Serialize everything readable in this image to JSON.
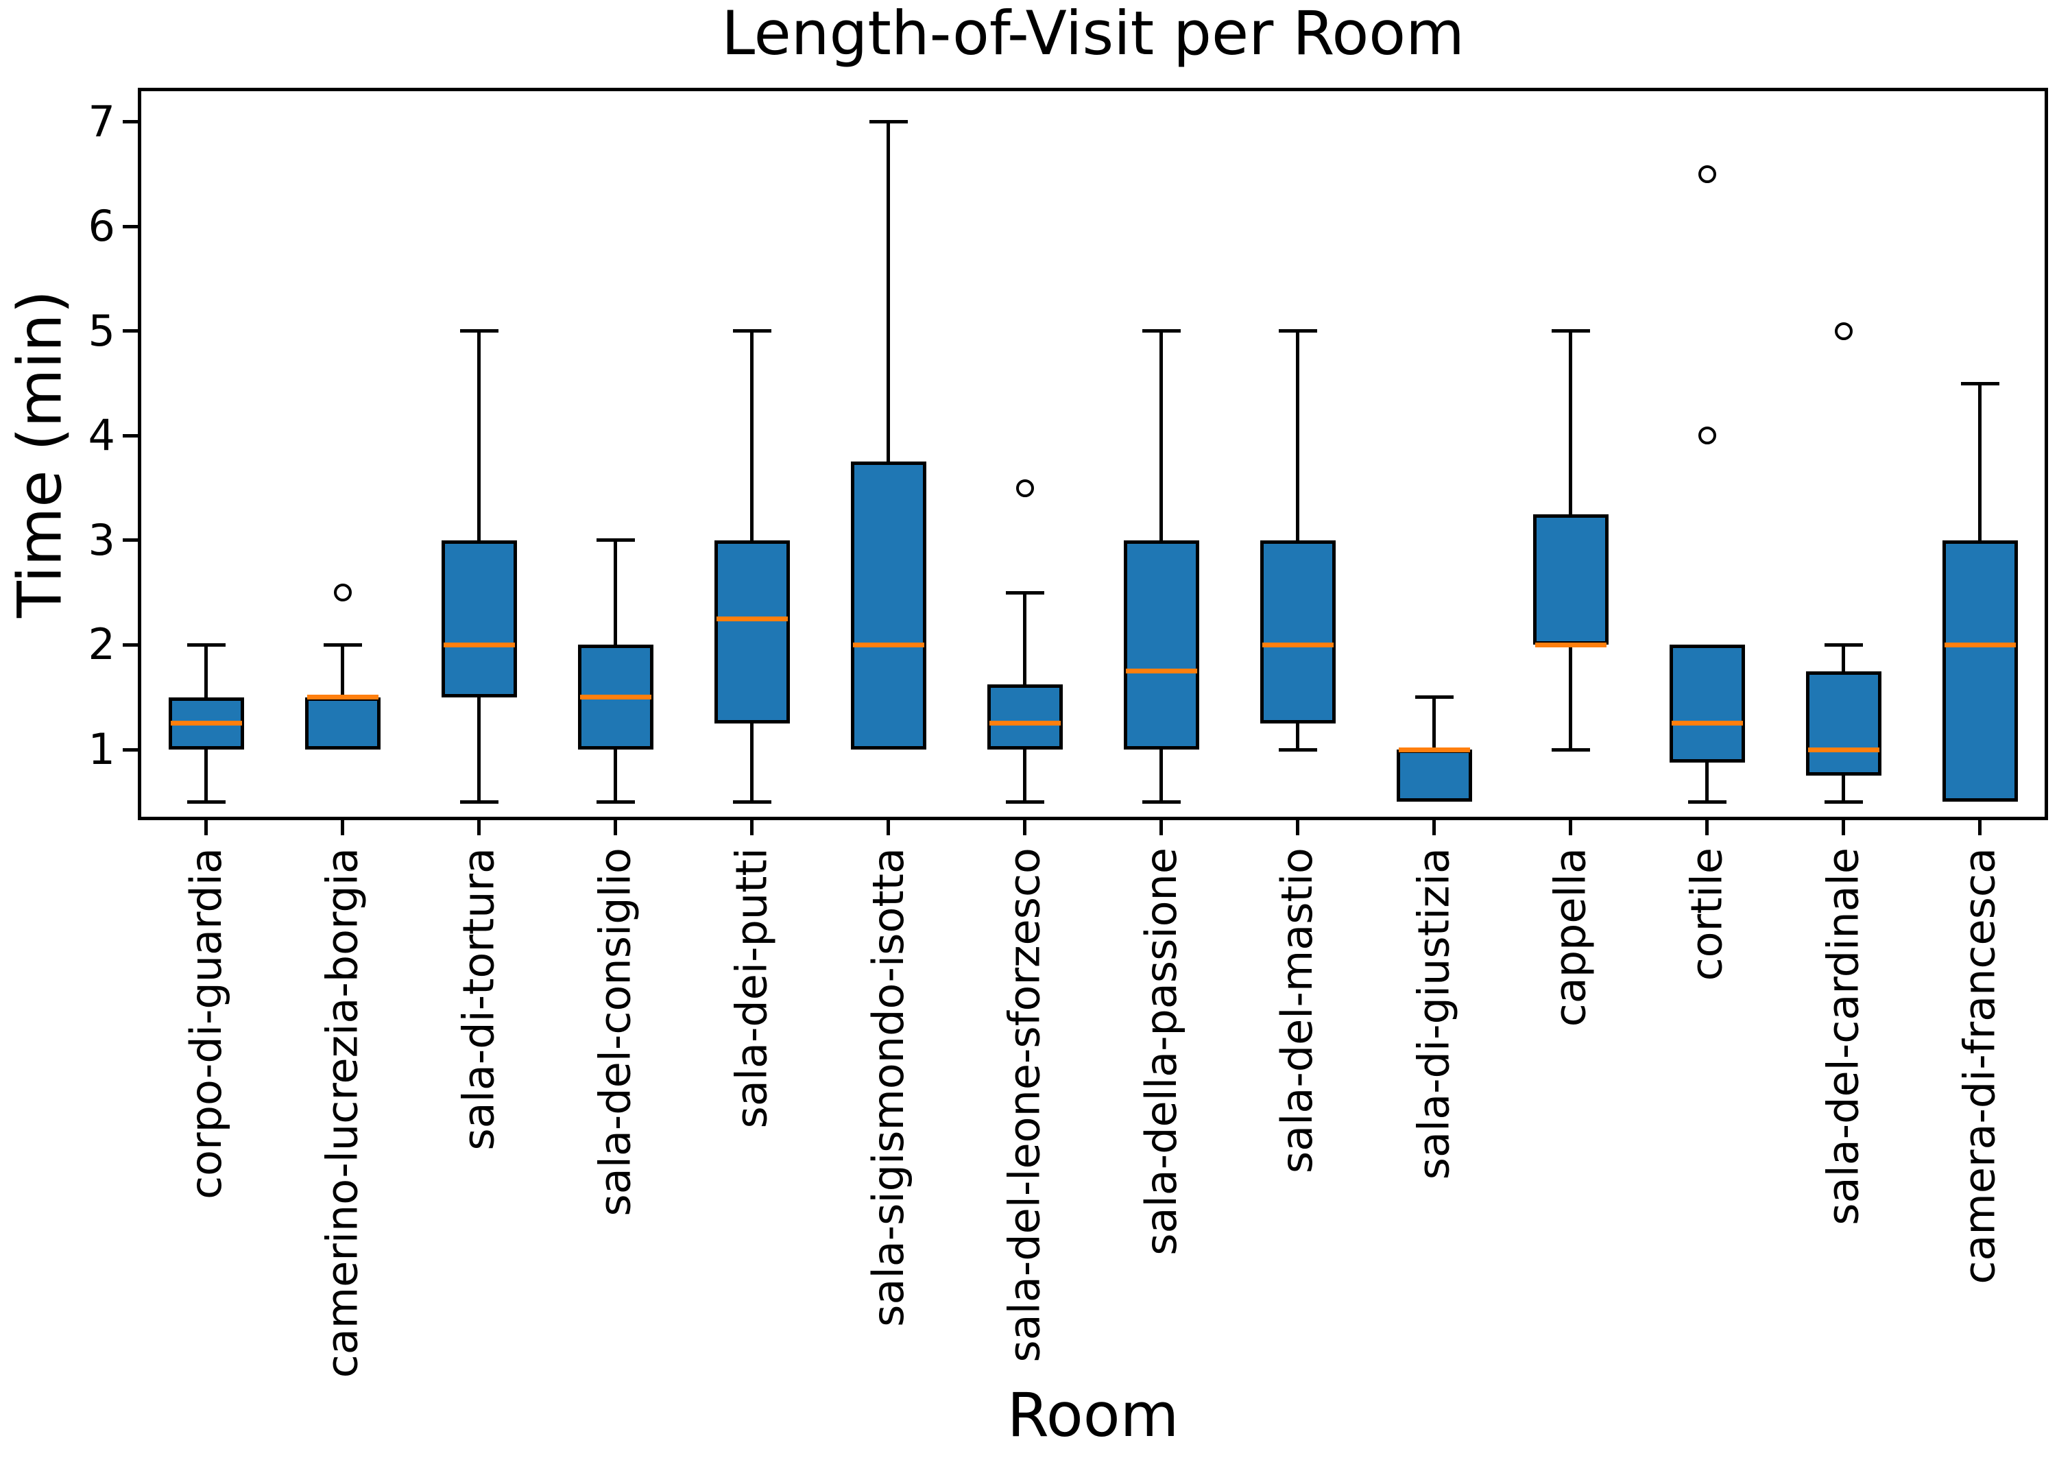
{
  "title": "Length-of-Visit per Room",
  "chart_data": {
    "type": "boxplot",
    "title": "Length-of-Visit per Room",
    "xlabel": "Room",
    "ylabel": "Time (min)",
    "ylim": [
      0.325,
      7.325
    ],
    "yticks": [
      1,
      2,
      3,
      4,
      5,
      6,
      7
    ],
    "grid": false,
    "legend": null,
    "colors": {
      "box_fill": "#1f77b4",
      "median": "#ff7f0e",
      "line": "#000000",
      "background": "#ffffff"
    },
    "categories": [
      "corpo-di-guardia",
      "camerino-lucrezia-borgia",
      "sala-di-tortura",
      "sala-del-consiglio",
      "sala-dei-putti",
      "sala-sigismondo-isotta",
      "sala-del-leone-sforzesco",
      "sala-della-passione",
      "sala-del-mastio",
      "sala-di-giustizia",
      "cappella",
      "cortile",
      "sala-del-cardinale",
      "camera-di-francesca"
    ],
    "series": [
      {
        "name": "corpo-di-guardia",
        "whislo": 0.5,
        "q1": 1.0,
        "med": 1.25,
        "q3": 1.5,
        "whishi": 2.0,
        "fliers": []
      },
      {
        "name": "camerino-lucrezia-borgia",
        "whislo": 1.0,
        "q1": 1.0,
        "med": 1.5,
        "q3": 1.5,
        "whishi": 2.0,
        "fliers": [
          2.5
        ]
      },
      {
        "name": "sala-di-tortura",
        "whislo": 0.5,
        "q1": 1.5,
        "med": 2.0,
        "q3": 3.0,
        "whishi": 5.0,
        "fliers": []
      },
      {
        "name": "sala-del-consiglio",
        "whislo": 0.5,
        "q1": 1.0,
        "med": 1.5,
        "q3": 2.0,
        "whishi": 3.0,
        "fliers": []
      },
      {
        "name": "sala-dei-putti",
        "whislo": 0.5,
        "q1": 1.25,
        "med": 2.25,
        "q3": 3.0,
        "whishi": 5.0,
        "fliers": []
      },
      {
        "name": "sala-sigismondo-isotta",
        "whislo": 1.0,
        "q1": 1.0,
        "med": 2.0,
        "q3": 3.75,
        "whishi": 7.0,
        "fliers": []
      },
      {
        "name": "sala-del-leone-sforzesco",
        "whislo": 0.5,
        "q1": 1.0,
        "med": 1.25,
        "q3": 1.625,
        "whishi": 2.5,
        "fliers": [
          3.5
        ]
      },
      {
        "name": "sala-della-passione",
        "whislo": 0.5,
        "q1": 1.0,
        "med": 1.75,
        "q3": 3.0,
        "whishi": 5.0,
        "fliers": []
      },
      {
        "name": "sala-del-mastio",
        "whislo": 1.0,
        "q1": 1.25,
        "med": 2.0,
        "q3": 3.0,
        "whishi": 5.0,
        "fliers": []
      },
      {
        "name": "sala-di-giustizia",
        "whislo": 0.5,
        "q1": 0.5,
        "med": 1.0,
        "q3": 1.0,
        "whishi": 1.5,
        "fliers": []
      },
      {
        "name": "cappella",
        "whislo": 1.0,
        "q1": 2.0,
        "med": 2.0,
        "q3": 3.25,
        "whishi": 5.0,
        "fliers": []
      },
      {
        "name": "cortile",
        "whislo": 0.5,
        "q1": 0.875,
        "med": 1.25,
        "q3": 2.0,
        "whishi": 2.0,
        "fliers": [
          4.0,
          6.5
        ]
      },
      {
        "name": "sala-del-cardinale",
        "whislo": 0.5,
        "q1": 0.75,
        "med": 1.0,
        "q3": 1.75,
        "whishi": 2.0,
        "fliers": [
          5.0
        ]
      },
      {
        "name": "camera-di-francesca",
        "whislo": 0.5,
        "q1": 0.5,
        "med": 2.0,
        "q3": 3.0,
        "whishi": 4.5,
        "fliers": []
      }
    ]
  }
}
